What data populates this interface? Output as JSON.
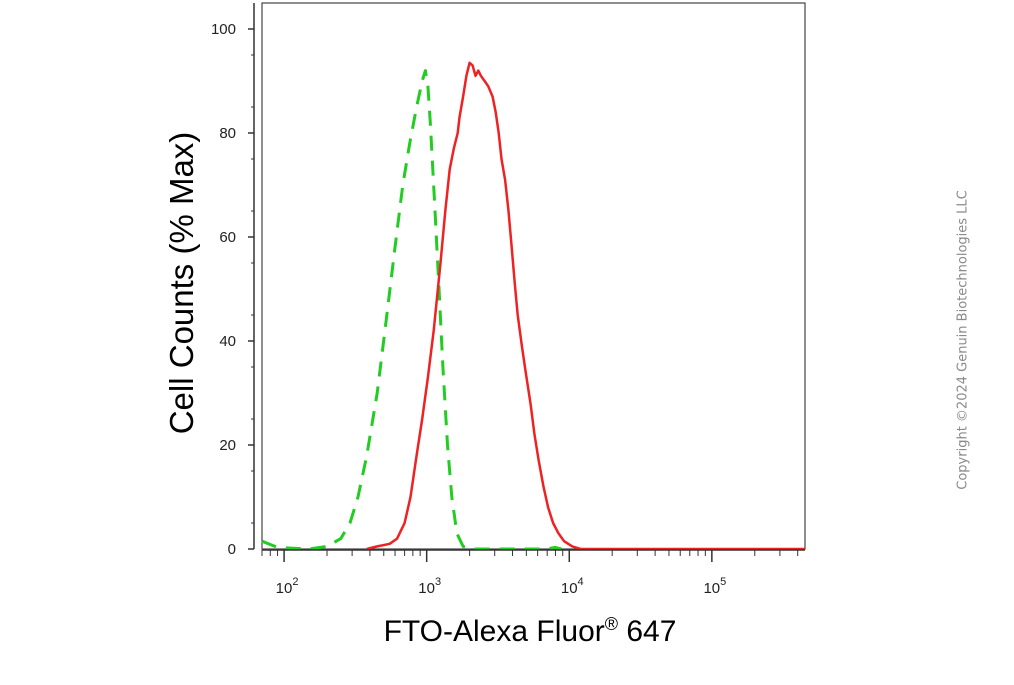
{
  "chart_data": {
    "type": "line",
    "title": "",
    "xlabel": "FTO-Alexa Fluor",
    "xlabel_mark": "®",
    "xlabel_tail": " 647",
    "ylabel": "Cell Counts (% Max)",
    "x_scale": "log",
    "xlim": [
      70,
      450000
    ],
    "ylim": [
      0,
      105
    ],
    "x_ticks": [
      {
        "base": "10",
        "exp": "2",
        "value": 100
      },
      {
        "base": "10",
        "exp": "3",
        "value": 1000
      },
      {
        "base": "10",
        "exp": "4",
        "value": 10000
      },
      {
        "base": "10",
        "exp": "5",
        "value": 100000
      }
    ],
    "y_ticks": [
      "0",
      "20",
      "40",
      "60",
      "80",
      "100"
    ],
    "grid": false,
    "legend": "none",
    "series": [
      {
        "color": "#22cc22",
        "style": "dashed",
        "points": [
          [
            70,
            1.5
          ],
          [
            90,
            0.3
          ],
          [
            150,
            0
          ],
          [
            200,
            0.5
          ],
          [
            250,
            2
          ],
          [
            290,
            5
          ],
          [
            330,
            10
          ],
          [
            380,
            18
          ],
          [
            450,
            30
          ],
          [
            520,
            44
          ],
          [
            600,
            58
          ],
          [
            680,
            70
          ],
          [
            760,
            78
          ],
          [
            850,
            85
          ],
          [
            930,
            90
          ],
          [
            980,
            92
          ],
          [
            1020,
            89
          ],
          [
            1060,
            82
          ],
          [
            1130,
            68
          ],
          [
            1210,
            52
          ],
          [
            1300,
            35
          ],
          [
            1400,
            20
          ],
          [
            1500,
            10
          ],
          [
            1630,
            3
          ],
          [
            1800,
            0.5
          ],
          [
            2100,
            0
          ],
          [
            7000,
            0
          ],
          [
            8000,
            0.3
          ],
          [
            8800,
            0
          ]
        ]
      },
      {
        "color": "#ee2222",
        "style": "solid",
        "points": [
          [
            380,
            0
          ],
          [
            450,
            0.5
          ],
          [
            550,
            1
          ],
          [
            620,
            2
          ],
          [
            700,
            5
          ],
          [
            770,
            10
          ],
          [
            850,
            18
          ],
          [
            930,
            25
          ],
          [
            1020,
            33
          ],
          [
            1120,
            42
          ],
          [
            1250,
            55
          ],
          [
            1350,
            65
          ],
          [
            1450,
            73
          ],
          [
            1550,
            77
          ],
          [
            1650,
            80
          ],
          [
            1700,
            83
          ],
          [
            1800,
            87
          ],
          [
            1900,
            91
          ],
          [
            2000,
            93.5
          ],
          [
            2100,
            93
          ],
          [
            2200,
            91
          ],
          [
            2300,
            92
          ],
          [
            2400,
            91
          ],
          [
            2550,
            90
          ],
          [
            2700,
            89
          ],
          [
            2900,
            87
          ],
          [
            3050,
            84
          ],
          [
            3200,
            80
          ],
          [
            3350,
            75
          ],
          [
            3550,
            71
          ],
          [
            3750,
            65
          ],
          [
            3950,
            58
          ],
          [
            4150,
            51
          ],
          [
            4350,
            45
          ],
          [
            4650,
            39
          ],
          [
            4950,
            34
          ],
          [
            5350,
            28
          ],
          [
            5700,
            22
          ],
          [
            6100,
            17
          ],
          [
            6600,
            12
          ],
          [
            7100,
            8
          ],
          [
            7700,
            5
          ],
          [
            8400,
            3
          ],
          [
            9200,
            1.5
          ],
          [
            10500,
            0.5
          ],
          [
            12000,
            0
          ],
          [
            60000,
            0
          ],
          [
            450000,
            0
          ]
        ]
      }
    ]
  },
  "copyright": "Copyright ©2024 Genuin Biotechnologies LLC"
}
